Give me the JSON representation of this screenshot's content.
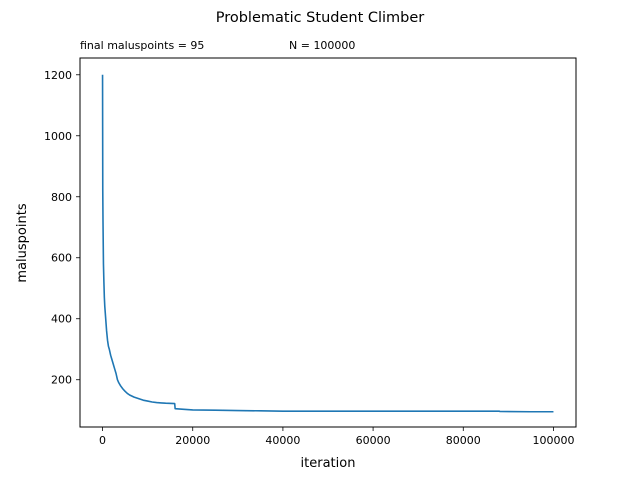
{
  "chart_data": {
    "type": "line",
    "title": "Problematic Student Climber",
    "annotations": {
      "left": "final maluspoints = 95",
      "right": "N = 100000"
    },
    "xlabel": "iteration",
    "ylabel": "maluspoints",
    "xlim": [
      -5000,
      105000
    ],
    "ylim": [
      45,
      1255
    ],
    "xticks": [
      0,
      20000,
      40000,
      60000,
      80000,
      100000
    ],
    "xtick_labels": [
      "0",
      "20000",
      "40000",
      "60000",
      "80000",
      "100000"
    ],
    "yticks": [
      200,
      400,
      600,
      800,
      1000,
      1200
    ],
    "ytick_labels": [
      "200",
      "400",
      "600",
      "800",
      "1000",
      "1200"
    ],
    "grid": false,
    "series": [
      {
        "color": "#1f77b4",
        "x": [
          0,
          50,
          100,
          200,
          300,
          400,
          500,
          700,
          900,
          1100,
          1300,
          1500,
          1800,
          2100,
          2400,
          2700,
          3000,
          3300,
          3600,
          4000,
          4500,
          5000,
          5500,
          6000,
          7000,
          8000,
          9000,
          10000,
          11000,
          12000,
          13000,
          14000,
          16000,
          16100,
          18000,
          20000,
          25000,
          30000,
          35000,
          40000,
          50000,
          60000,
          70000,
          80000,
          88000,
          88100,
          95000,
          100000
        ],
        "y": [
          1200,
          820,
          720,
          580,
          520,
          470,
          440,
          400,
          360,
          330,
          310,
          300,
          280,
          265,
          250,
          235,
          220,
          200,
          190,
          180,
          170,
          162,
          155,
          150,
          143,
          138,
          133,
          130,
          127,
          125,
          124,
          123,
          122,
          105,
          103,
          101,
          100,
          99,
          98,
          97,
          97,
          97,
          97,
          97,
          97,
          96,
          95,
          95
        ]
      }
    ]
  }
}
